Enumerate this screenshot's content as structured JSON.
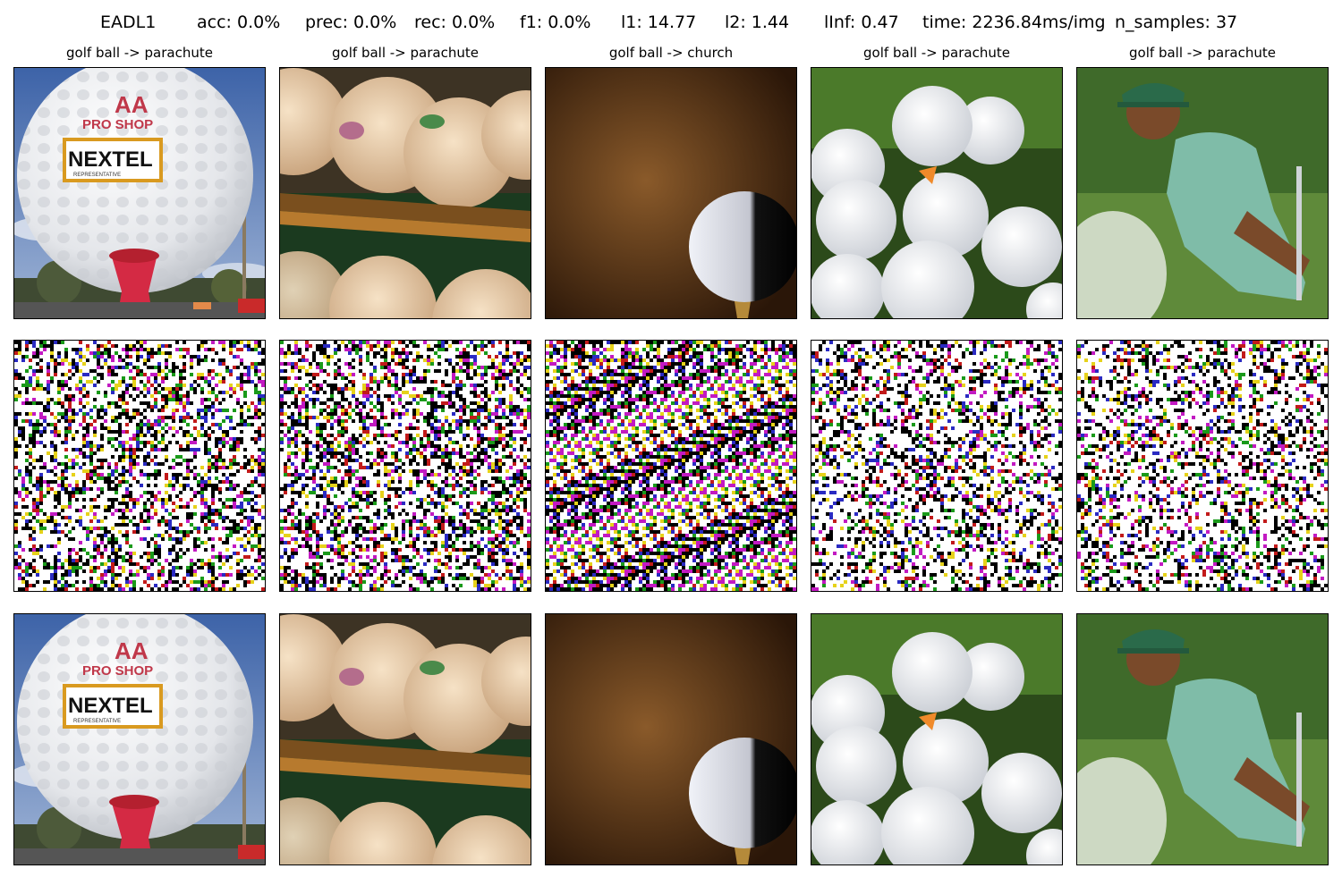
{
  "header": {
    "method": "EADL1",
    "acc": "acc: 0.0%",
    "prec": "prec: 0.0%",
    "rec": "rec: 0.0%",
    "f1": "f1: 0.0%",
    "l1": "l1: 14.77",
    "l2": "l2: 1.44",
    "linf": "lInf: 0.47",
    "time": "time: 2236.84ms/img",
    "n_samples": "n_samples: 37"
  },
  "columns": [
    {
      "title": "golf ball -> parachute",
      "scene": "giant-golf-ball-sign",
      "sign_text": "NEXTEL",
      "top_text": "AA",
      "sub_text": "PRO SHOP",
      "small_text": "REPRESENTATIVE"
    },
    {
      "title": "golf ball -> parachute",
      "scene": "golf-balls-on-shelf"
    },
    {
      "title": "golf ball -> church",
      "scene": "golf-ball-on-tee-dark"
    },
    {
      "title": "golf ball -> parachute",
      "scene": "golf-balls-in-grass"
    },
    {
      "title": "golf ball -> parachute",
      "scene": "golfer-bunker-shot"
    }
  ],
  "rows": [
    "original-image",
    "perturbation",
    "adversarial-image"
  ]
}
